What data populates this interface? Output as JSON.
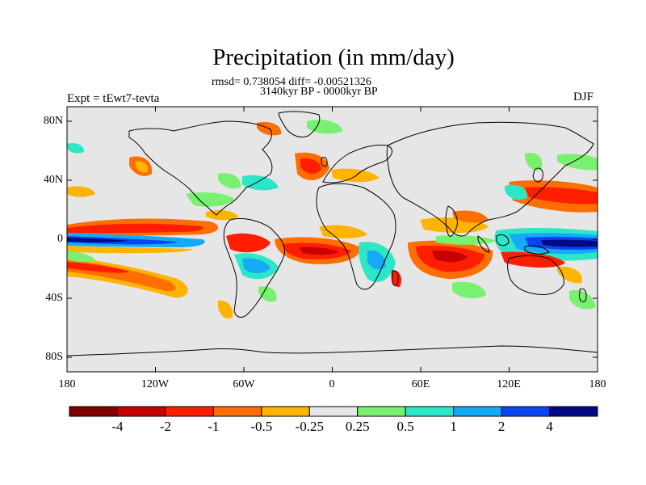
{
  "title": "Precipitation (in mm/day)",
  "stats_line": "rmsd= 0.738054 diff= -0.00521326",
  "period_line": "3140kyr BP - 0000kyr BP",
  "experiment": "Expt = tEwt7-tevta",
  "season": "DJF",
  "axes": {
    "lat_ticks": [
      "80N",
      "40N",
      "0",
      "40S",
      "80S"
    ],
    "lon_ticks": [
      "180",
      "120W",
      "60W",
      "0",
      "60E",
      "120E",
      "180"
    ]
  },
  "colorbar": {
    "labels": [
      "-4",
      "-2",
      "-1",
      "-0.5",
      "-0.25",
      "0.25",
      "0.5",
      "1",
      "2",
      "4"
    ],
    "colors": [
      "#800000",
      "#c80000",
      "#ff1e00",
      "#ff6e00",
      "#ffb400",
      "#e6e6e6",
      "#78f070",
      "#2de6c8",
      "#14aaf5",
      "#0a46f0",
      "#000a82"
    ]
  },
  "map_colors": {
    "ocean_neutral": "#e6e6e6",
    "coast": "#000000"
  }
}
